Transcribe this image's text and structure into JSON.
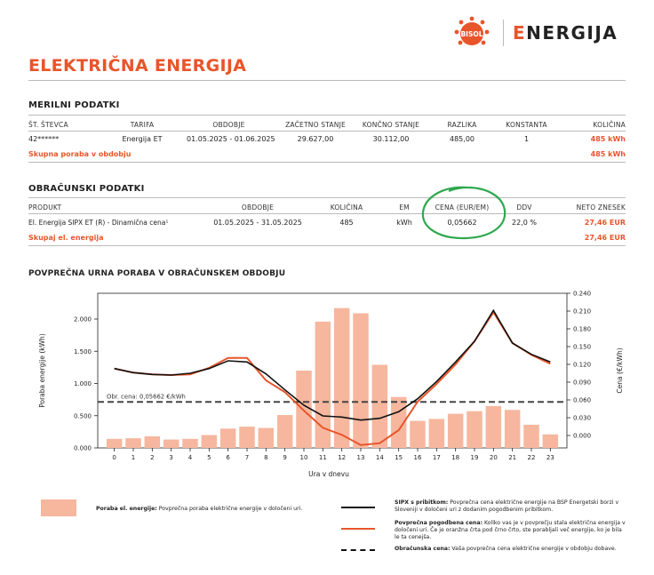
{
  "header": {
    "brand_logo_text": "BISOL",
    "brand_name": "NERGIJA"
  },
  "title": "ELEKTRIČNA ENERGIJA",
  "meter": {
    "section_title": "MERILNI PODATKI",
    "headers": [
      "ŠT. ŠTEVCA",
      "TARIFA",
      "OBDOBJE",
      "ZAČETNO STANJE",
      "KONČNO STANJE",
      "RAZLIKA",
      "KONSTANTA",
      "KOLIČINA"
    ],
    "row": [
      "42******",
      "Energija ET",
      "01.05.2025 - 01.06.2025",
      "29.627,00",
      "30.112,00",
      "485,00",
      "1",
      "485 kWh"
    ],
    "total_label": "Skupna poraba v obdobju",
    "total_value": "485 kWh"
  },
  "billing": {
    "section_title": "OBRAČUNSKI PODATKI",
    "headers": [
      "PRODUKT",
      "OBDOBJE",
      "KOLIČINA",
      "EM",
      "CENA (EUR/EM)",
      "DDV",
      "NETO ZNESEK"
    ],
    "row": [
      "El. Energija SIPX ET (R) - Dinamična cena¹",
      "01.05.2025 - 31.05.2025",
      "485",
      "kWh",
      "0,05662",
      "22,0 %",
      "27,46 EUR"
    ],
    "total_label": "Skupaj el. energija",
    "total_value": "27,46 EUR"
  },
  "chart_section_title": "POVPREČNA URNA PORABA V OBRAČUNSKEM OBDOBJU",
  "chart_data": {
    "type": "bar",
    "xlabel": "Ura v dnevu",
    "ylabel": "Poraba energije (kWh)",
    "y2label": "Cena (€/kWh)",
    "ylim": [
      0,
      2.4
    ],
    "y2lim": [
      -0.021,
      0.24
    ],
    "yticks": [
      "0.000",
      "0.500",
      "1.000",
      "1.500",
      "2.000"
    ],
    "y2ticks": [
      "0.000",
      "0.030",
      "0.060",
      "0.090",
      "0.120",
      "0.150",
      "0.180",
      "0.210",
      "0.240"
    ],
    "categories": [
      "0",
      "1",
      "2",
      "3",
      "4",
      "5",
      "6",
      "7",
      "8",
      "9",
      "10",
      "11",
      "12",
      "13",
      "14",
      "15",
      "16",
      "17",
      "18",
      "19",
      "20",
      "21",
      "22",
      "23"
    ],
    "series": [
      {
        "name": "Poraba el. energije",
        "kind": "bar",
        "color": "#f6b79e",
        "values": [
          0.14,
          0.15,
          0.18,
          0.13,
          0.14,
          0.2,
          0.3,
          0.33,
          0.31,
          0.51,
          1.2,
          1.96,
          2.17,
          2.09,
          1.29,
          0.79,
          0.42,
          0.45,
          0.53,
          0.57,
          0.65,
          0.59,
          0.36,
          0.21
        ]
      },
      {
        "name": "SIPX s pribitkom",
        "kind": "line",
        "color": "#111111",
        "values": [
          0.113,
          0.106,
          0.103,
          0.102,
          0.105,
          0.113,
          0.126,
          0.124,
          0.104,
          0.077,
          0.051,
          0.033,
          0.031,
          0.026,
          0.029,
          0.04,
          0.062,
          0.091,
          0.124,
          0.159,
          0.211,
          0.156,
          0.137,
          0.124
        ]
      },
      {
        "name": "Povprečna pogodbena cena",
        "kind": "line",
        "color": "#e8552b",
        "values": [
          0.113,
          0.106,
          0.103,
          0.102,
          0.103,
          0.114,
          0.131,
          0.131,
          0.093,
          0.073,
          0.042,
          0.013,
          0.001,
          -0.016,
          -0.013,
          0.009,
          0.057,
          0.087,
          0.12,
          0.159,
          0.208,
          0.156,
          0.136,
          0.121
        ]
      }
    ],
    "reference_line": {
      "name": "Obračunska cena",
      "value": 0.05662,
      "label": "Obr. cena: 0,05662 €/kWh",
      "color": "#444444"
    }
  },
  "legend": {
    "bar": {
      "title": "Poraba el. energije:",
      "text": "Povprečna poraba električne energije v določeni uri."
    },
    "sipx": {
      "title": "SIPX s pribitkom:",
      "text": "Povprečna cena električne energije na BSP Energetski borzi v Sloveniji v določeni uri z dodanim pogodbenim pribitkom."
    },
    "contract": {
      "title": "Povprečna pogodbena cena:",
      "text": "Koliko vas je v povprečju stala električna energija v določeni uri. Če je oranžna črta pod črno črto, ste porabljali več energije, ko je bila le ta cenejša."
    },
    "billing": {
      "title": "Obračunska cena:",
      "text": "Vaša povprečna cena električne energije v obdobju dobave."
    }
  },
  "colors": {
    "accent": "#e8552b",
    "bar": "#f6b79e",
    "annotation": "#2fa84f"
  }
}
